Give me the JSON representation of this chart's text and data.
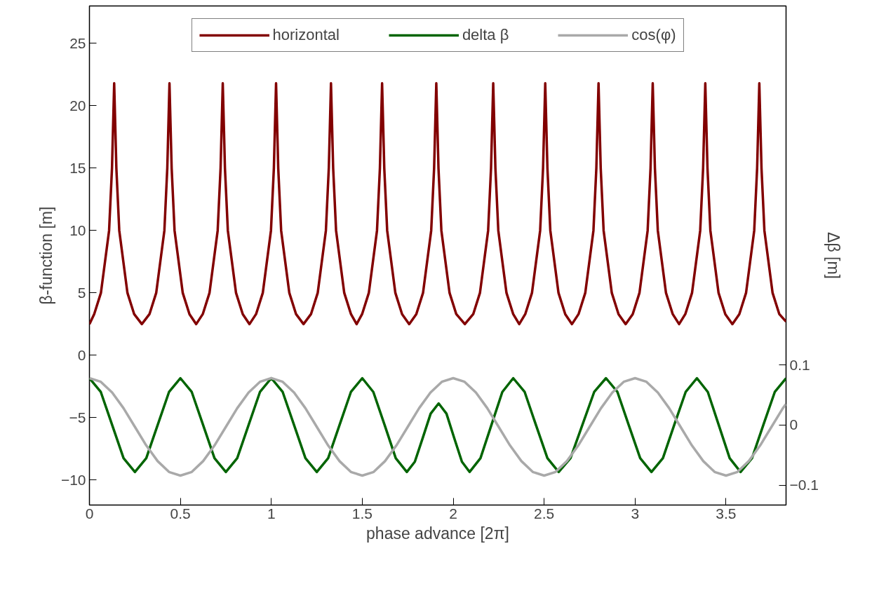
{
  "chart_data": {
    "type": "line",
    "xlabel": "phase advance [2π]",
    "ylabel": "β-function [m]",
    "y2label": "Δβ [m]",
    "xlim": [
      0,
      3.83
    ],
    "xticks": [
      0,
      0.5,
      1,
      1.5,
      2,
      2.5,
      3,
      3.5
    ],
    "ylim": [
      -12,
      28
    ],
    "yticks": [
      -10,
      -5,
      0,
      5,
      10,
      15,
      20,
      25
    ],
    "y2lim": [
      -0.133,
      0.697
    ],
    "y2ticks": [
      -0.1,
      0,
      0.1
    ],
    "grid": false,
    "legend": "top",
    "line_style": "solid",
    "marker": "none",
    "series": [
      {
        "name": "horizontal",
        "color": "#820000",
        "x": [
          0,
          0.026,
          0.063,
          0.108,
          0.124,
          0.136,
          0.148,
          0.164,
          0.209,
          0.246,
          0.288,
          0.33,
          0.367,
          0.412,
          0.428,
          0.44,
          0.452,
          0.468,
          0.513,
          0.55,
          0.587,
          0.623,
          0.66,
          0.705,
          0.721,
          0.733,
          0.745,
          0.761,
          0.806,
          0.843,
          0.88,
          0.916,
          0.953,
          0.998,
          1.014,
          1.026,
          1.038,
          1.054,
          1.099,
          1.136,
          1.177,
          1.218,
          1.255,
          1.3,
          1.316,
          1.328,
          1.34,
          1.356,
          1.401,
          1.438,
          1.469,
          1.499,
          1.536,
          1.581,
          1.597,
          1.609,
          1.621,
          1.637,
          1.682,
          1.719,
          1.758,
          1.797,
          1.834,
          1.879,
          1.895,
          1.907,
          1.919,
          1.935,
          1.98,
          2.017,
          2.064,
          2.11,
          2.147,
          2.192,
          2.208,
          2.22,
          2.232,
          2.248,
          2.293,
          2.33,
          2.363,
          2.396,
          2.433,
          2.478,
          2.494,
          2.506,
          2.518,
          2.534,
          2.579,
          2.616,
          2.653,
          2.689,
          2.726,
          2.771,
          2.787,
          2.799,
          2.811,
          2.827,
          2.872,
          2.909,
          2.948,
          2.987,
          3.024,
          3.069,
          3.085,
          3.097,
          3.109,
          3.125,
          3.17,
          3.207,
          3.242,
          3.276,
          3.313,
          3.358,
          3.374,
          3.386,
          3.398,
          3.414,
          3.459,
          3.496,
          3.535,
          3.573,
          3.61,
          3.655,
          3.671,
          3.683,
          3.695,
          3.711,
          3.756,
          3.793,
          3.83
        ],
        "values": [
          2.5,
          3.3,
          5,
          10,
          15,
          21.8,
          15,
          10,
          5,
          3.3,
          2.5,
          3.3,
          5,
          10,
          15,
          21.8,
          15,
          10,
          5,
          3.3,
          2.5,
          3.3,
          5,
          10,
          15,
          21.8,
          15,
          10,
          5,
          3.3,
          2.5,
          3.3,
          5,
          10,
          15,
          21.8,
          15,
          10,
          5,
          3.3,
          2.5,
          3.3,
          5,
          10,
          15,
          21.8,
          15,
          10,
          5,
          3.3,
          2.5,
          3.3,
          5,
          10,
          15,
          21.8,
          15,
          10,
          5,
          3.3,
          2.5,
          3.3,
          5,
          10,
          15,
          21.8,
          15,
          10,
          5,
          3.3,
          2.5,
          3.3,
          5,
          10,
          15,
          21.8,
          15,
          10,
          5,
          3.3,
          2.5,
          3.3,
          5,
          10,
          15,
          21.8,
          15,
          10,
          5,
          3.3,
          2.5,
          3.3,
          5,
          10,
          15,
          21.8,
          15,
          10,
          5,
          3.3,
          2.5,
          3.3,
          5,
          10,
          15,
          21.8,
          15,
          10,
          5,
          3.3,
          2.5,
          3.3,
          5,
          10,
          15,
          21.8,
          15,
          10,
          5,
          3.3,
          2.5,
          3.3,
          5,
          10,
          15,
          21.8,
          15,
          10,
          5,
          3.3,
          2.7
        ]
      },
      {
        "name": "delta β",
        "color": "#006400",
        "axis": "y2",
        "x": [
          0,
          0.0625,
          0.125,
          0.1875,
          0.25,
          0.3125,
          0.375,
          0.4375,
          0.5,
          0.5625,
          0.625,
          0.6875,
          0.75,
          0.8125,
          0.875,
          0.9375,
          1.0,
          1.0625,
          1.125,
          1.1875,
          1.25,
          1.3125,
          1.375,
          1.4375,
          1.5,
          1.561,
          1.623,
          1.684,
          1.745,
          1.789,
          1.833,
          1.876,
          1.92,
          1.963,
          2.005,
          2.048,
          2.09,
          2.15,
          2.21,
          2.27,
          2.33,
          2.393,
          2.455,
          2.518,
          2.58,
          2.645,
          2.71,
          2.775,
          2.84,
          2.903,
          2.965,
          3.028,
          3.09,
          3.153,
          3.215,
          3.278,
          3.34,
          3.4,
          3.46,
          3.52,
          3.58,
          3.643,
          3.705,
          3.768,
          3.83
        ],
        "values": [
          0.078,
          0.055,
          0,
          -0.055,
          -0.078,
          -0.055,
          0,
          0.055,
          0.078,
          0.055,
          0,
          -0.055,
          -0.078,
          -0.055,
          0,
          0.055,
          0.078,
          0.055,
          0,
          -0.055,
          -0.078,
          -0.055,
          0,
          0.055,
          0.078,
          0.055,
          0,
          -0.055,
          -0.078,
          -0.061,
          -0.021,
          0.019,
          0.036,
          0.019,
          -0.021,
          -0.061,
          -0.078,
          -0.055,
          0,
          0.055,
          0.078,
          0.055,
          0,
          -0.055,
          -0.078,
          -0.055,
          0,
          0.055,
          0.078,
          0.055,
          0,
          -0.055,
          -0.078,
          -0.055,
          0,
          0.055,
          0.078,
          0.055,
          0,
          -0.055,
          -0.078,
          -0.055,
          0,
          0.055,
          0.078
        ]
      },
      {
        "name": "cos(φ)",
        "color": "#a9a9a9",
        "axis": "y2",
        "x": [
          0,
          0.0625,
          0.125,
          0.1875,
          0.25,
          0.3125,
          0.375,
          0.4375,
          0.5,
          0.5625,
          0.625,
          0.6875,
          0.75,
          0.8125,
          0.875,
          0.9375,
          1.0,
          1.0625,
          1.125,
          1.1875,
          1.25,
          1.3125,
          1.375,
          1.4375,
          1.5,
          1.5625,
          1.625,
          1.6875,
          1.75,
          1.8125,
          1.875,
          1.9375,
          2.0,
          2.0625,
          2.125,
          2.1875,
          2.25,
          2.3125,
          2.375,
          2.4375,
          2.5,
          2.5625,
          2.625,
          2.6875,
          2.75,
          2.8125,
          2.875,
          2.9375,
          3.0,
          3.0625,
          3.125,
          3.1875,
          3.25,
          3.3125,
          3.375,
          3.4375,
          3.5,
          3.5625,
          3.625,
          3.6875,
          3.75,
          3.8125,
          3.83
        ],
        "values": [
          0.078,
          0.072,
          0.054,
          0.028,
          -0.003,
          -0.034,
          -0.06,
          -0.078,
          -0.084,
          -0.078,
          -0.06,
          -0.034,
          -0.003,
          0.028,
          0.054,
          0.072,
          0.078,
          0.072,
          0.054,
          0.028,
          -0.003,
          -0.034,
          -0.06,
          -0.078,
          -0.084,
          -0.078,
          -0.06,
          -0.034,
          -0.003,
          0.028,
          0.054,
          0.072,
          0.078,
          0.072,
          0.054,
          0.028,
          -0.003,
          -0.034,
          -0.06,
          -0.078,
          -0.084,
          -0.078,
          -0.06,
          -0.034,
          -0.003,
          0.028,
          0.054,
          0.072,
          0.078,
          0.072,
          0.054,
          0.028,
          -0.003,
          -0.034,
          -0.06,
          -0.078,
          -0.084,
          -0.078,
          -0.06,
          -0.034,
          -0.003,
          0.028,
          0.035
        ]
      }
    ]
  }
}
